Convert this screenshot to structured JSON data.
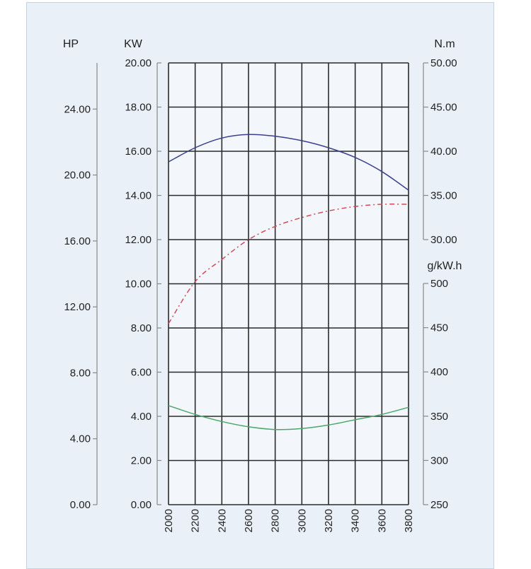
{
  "chart_data": {
    "type": "line",
    "title": "",
    "x": [
      2000,
      2200,
      2400,
      2600,
      2800,
      3000,
      3200,
      3400,
      3600,
      3800
    ],
    "x_tick_labels": [
      "2000",
      "2200",
      "2400",
      "2600",
      "2800",
      "3000",
      "3200",
      "3400",
      "3600",
      "3800"
    ],
    "xlim": [
      2000,
      3800
    ],
    "grid": true,
    "axes": {
      "hp": {
        "label": "HP",
        "ylim": [
          0,
          26.8
        ],
        "ticks": [
          0,
          4,
          8,
          12,
          16,
          20,
          24
        ],
        "tick_labels": [
          "0.00",
          "4.00",
          "8.00",
          "12.00",
          "16.00",
          "20.00",
          "24.00"
        ]
      },
      "kw": {
        "label": "KW",
        "ylim": [
          0,
          20
        ],
        "ticks": [
          0,
          2,
          4,
          6,
          8,
          10,
          12,
          14,
          16,
          18,
          20
        ],
        "tick_labels": [
          "0.00",
          "2.00",
          "4.00",
          "6.00",
          "8.00",
          "10.00",
          "12.00",
          "14.00",
          "16.00",
          "18.00",
          "20.00"
        ]
      },
      "torque": {
        "label": "N.m",
        "ylim": [
          30,
          50
        ],
        "ticks": [
          30,
          35,
          40,
          45,
          50
        ],
        "tick_labels": [
          "30.00",
          "35.00",
          "40.00",
          "45.00",
          "50.00"
        ]
      },
      "fuel": {
        "label": "g/kW.h",
        "ylim": [
          250,
          500
        ],
        "ticks": [
          250,
          300,
          350,
          400,
          450,
          500
        ],
        "tick_labels": [
          "250",
          "300",
          "350",
          "400",
          "450",
          "500"
        ]
      }
    },
    "series": [
      {
        "axis": "torque",
        "color": "#3b3f8f",
        "dash": false,
        "values": [
          38.8,
          40.4,
          41.5,
          41.9,
          41.7,
          41.2,
          40.4,
          39.3,
          37.7,
          35.6
        ]
      },
      {
        "axis": "kw",
        "color": "#d04a5a",
        "dash": true,
        "values": [
          8.2,
          10.1,
          11.1,
          12.0,
          12.6,
          13.0,
          13.3,
          13.5,
          13.6,
          13.6
        ]
      },
      {
        "axis": "fuel",
        "color": "#4ca66a",
        "dash": false,
        "values": [
          362,
          352,
          344,
          338,
          335,
          336,
          340,
          346,
          352,
          360
        ]
      }
    ]
  }
}
